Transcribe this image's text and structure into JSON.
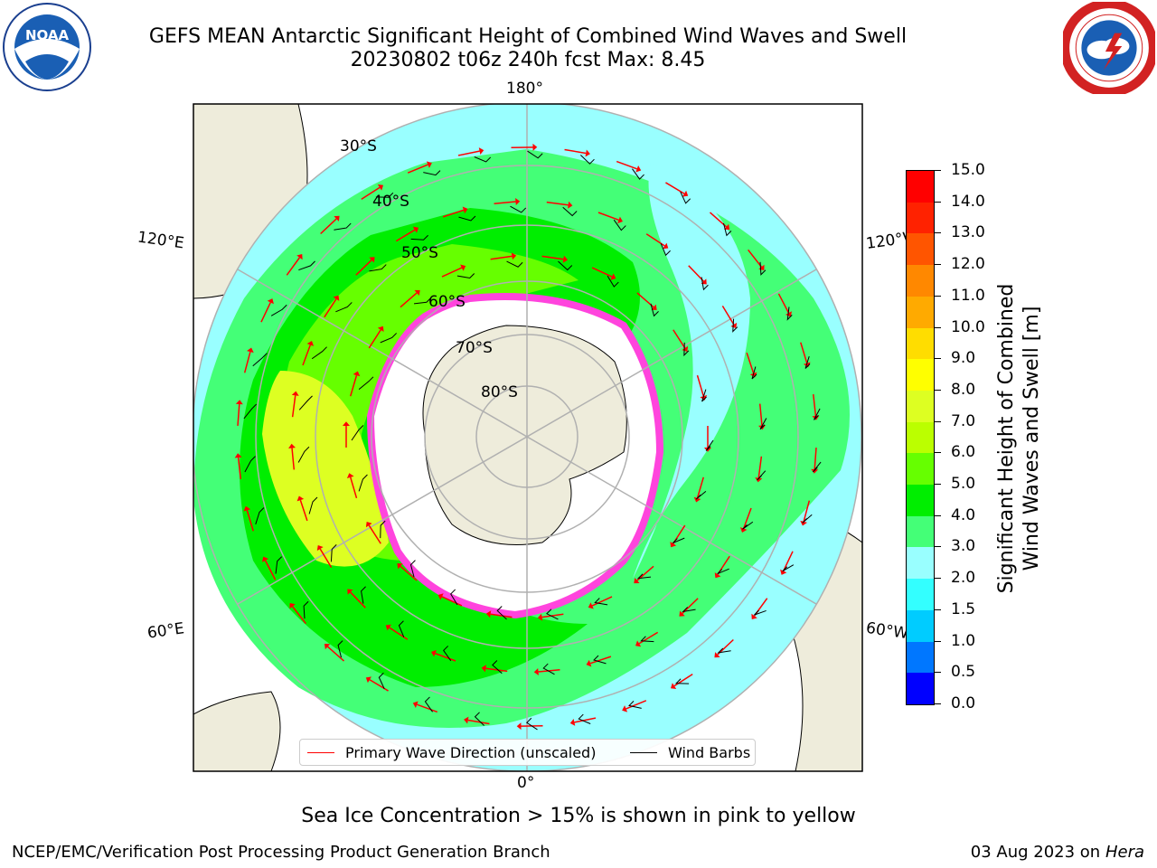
{
  "title": {
    "line1": "GEFS MEAN Antarctic Significant Height of Combined Wind Waves and Swell",
    "line2": "20230802 t06z 240h fcst   Max: 8.45"
  },
  "logos": {
    "left": {
      "icon": "noaa-logo",
      "text": "NOAA"
    },
    "right": {
      "icon": "nws-logo"
    }
  },
  "map": {
    "projection": "south-polar-stereographic",
    "longitude_labels": {
      "top": "180°",
      "bottom": "0°",
      "left_upper": "120°E",
      "left_lower": "60°E",
      "right_upper": "120°W",
      "right_lower": "60°W"
    },
    "latitude_labels": [
      "30°S",
      "40°S",
      "50°S",
      "60°S",
      "70°S",
      "80°S"
    ],
    "colors": {
      "land": "#eeecdb",
      "ocean_background": "#ffffff",
      "graticule": "#b0b0b0",
      "sea_ice": "#ff44dd",
      "wave_arrow": "#ff0000",
      "wind_barb": "#000000"
    }
  },
  "legend": {
    "wave_direction": "Primary Wave Direction (unscaled)",
    "wind_barbs": "Wind Barbs"
  },
  "colorbar": {
    "title_line1": "Significant Height of Combined",
    "title_line2": "Wind Waves and Swell [m]",
    "ticks": [
      "0.0",
      "0.5",
      "1.0",
      "1.5",
      "2.0",
      "3.0",
      "4.0",
      "5.0",
      "6.0",
      "7.0",
      "8.0",
      "9.0",
      "10.0",
      "11.0",
      "12.0",
      "13.0",
      "14.0",
      "15.0"
    ],
    "colors": [
      "#0000ff",
      "#0077ff",
      "#00ccff",
      "#33ffff",
      "#99ffff",
      "#44ff77",
      "#00ee00",
      "#66ff00",
      "#bbff00",
      "#ddff22",
      "#ffff00",
      "#ffdd00",
      "#ffaa00",
      "#ff8800",
      "#ff5500",
      "#ff2200",
      "#ff0000"
    ]
  },
  "footer": {
    "sea_ice_note": "Sea Ice Concentration > 15% is shown in pink to yellow",
    "credit_left": "NCEP/EMC/Verification Post Processing Product Generation Branch",
    "credit_right_date": "03 Aug 2023 on",
    "credit_right_machine": "Hera"
  }
}
